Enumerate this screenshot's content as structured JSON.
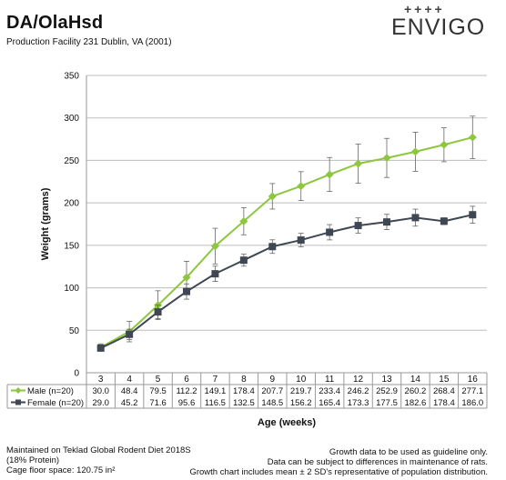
{
  "header": {
    "title": "DA/OlaHsd",
    "subtitle": "Production Facility 231 Dublin, VA (2001)",
    "logo_text": "ENVIGO",
    "logo_mark": "++++"
  },
  "footer": {
    "left": [
      "Maintained on Teklad Global Rodent Diet 2018S",
      "(18% Protein)",
      "Cage floor space: 120.75 in²"
    ],
    "right": [
      "Growth data to be used as guideline only.",
      "Data can be subject to differences in maintenance of rats.",
      "Growth chart includes mean ± 2 SD's representative of population distribution."
    ]
  },
  "colors": {
    "male": "#8DC63F",
    "female": "#3F4752",
    "axis": "#999999",
    "grid": "#bdbdbd"
  },
  "chart_data": {
    "type": "line",
    "xlabel": "Age (weeks)",
    "ylabel": "Weight (grams)",
    "ylim": [
      0,
      350
    ],
    "yticks": [
      "0",
      "50",
      "100",
      "150",
      "200",
      "250",
      "300",
      "350"
    ],
    "categories": [
      "3",
      "4",
      "5",
      "6",
      "7",
      "8",
      "9",
      "10",
      "11",
      "12",
      "13",
      "14",
      "15",
      "16"
    ],
    "grid": true,
    "legend": "table-below",
    "series": [
      {
        "name": "Male (n=20)",
        "marker": "diamond",
        "values": [
          30.0,
          48.4,
          79.5,
          112.2,
          149.1,
          178.4,
          207.7,
          219.7,
          233.4,
          246.2,
          252.9,
          260.2,
          268.4,
          277.1
        ],
        "labels": [
          "30.0",
          "48.4",
          "79.5",
          "112.2",
          "149.1",
          "178.4",
          "207.7",
          "219.7",
          "233.4",
          "246.2",
          "252.9",
          "260.2",
          "268.4",
          "277.1"
        ],
        "err": [
          4,
          12,
          17,
          19,
          21,
          16,
          15,
          17,
          20,
          23,
          23,
          23,
          20,
          25
        ]
      },
      {
        "name": "Female (n=20)",
        "marker": "square",
        "values": [
          29.0,
          45.2,
          71.6,
          95.6,
          116.5,
          132.5,
          148.5,
          156.2,
          165.4,
          173.3,
          177.5,
          182.6,
          178.4,
          186.0
        ],
        "labels": [
          "29.0",
          "45.2",
          "71.6",
          "95.6",
          "116.5",
          "132.5",
          "148.5",
          "156.2",
          "165.4",
          "173.3",
          "177.5",
          "182.6",
          "178.4",
          "186.0"
        ],
        "err": [
          3,
          6,
          8,
          9,
          9,
          7,
          8,
          8,
          9,
          9,
          9,
          10,
          4,
          10
        ]
      }
    ]
  }
}
